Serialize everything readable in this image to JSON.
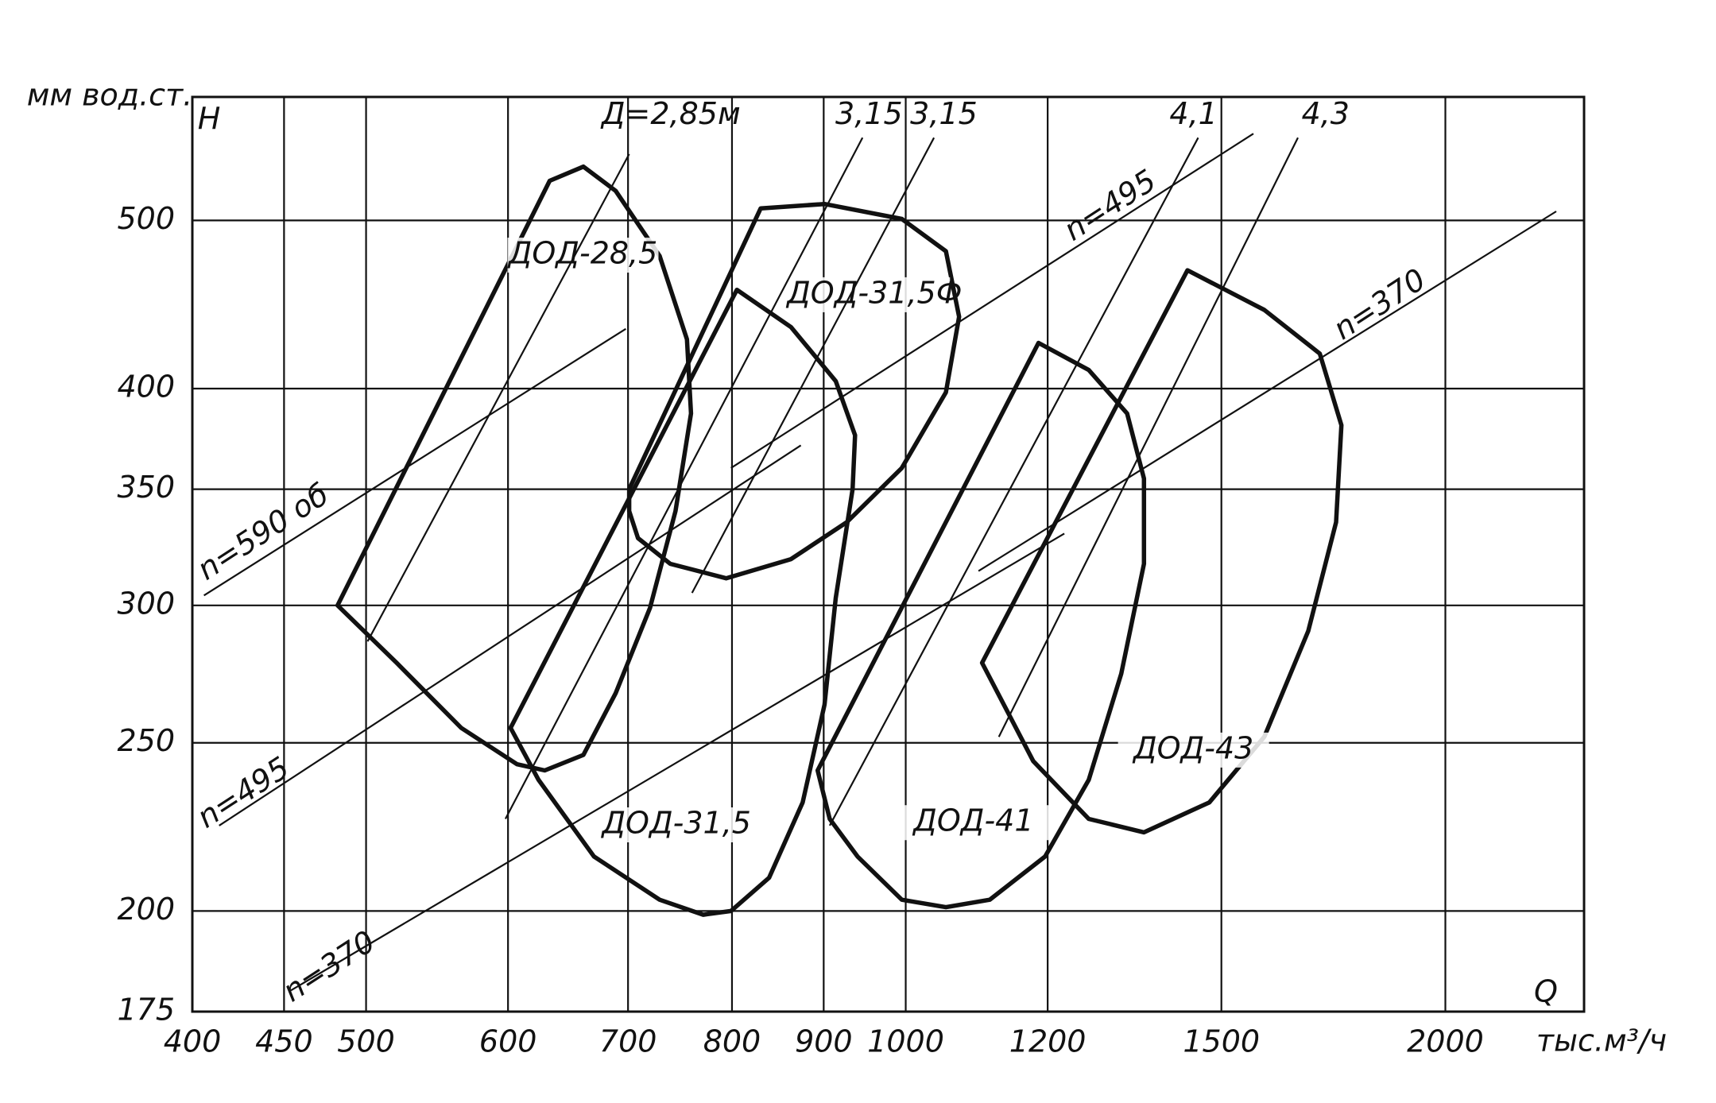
{
  "chart_data": {
    "type": "line",
    "xlog": true,
    "ylog": true,
    "grid": true,
    "color": "#111111",
    "ylabel": "мм вод.ст.",
    "ysymbol": "H",
    "xsymbol": "Q",
    "xlabel": "тыс.м³/ч",
    "xlim": [
      400,
      2390
    ],
    "ylim": [
      175,
      589
    ],
    "xticks": [
      400,
      450,
      500,
      600,
      700,
      800,
      900,
      1000,
      1200,
      1500,
      2000
    ],
    "yticks": [
      175,
      200,
      250,
      300,
      350,
      400,
      500
    ],
    "series": [
      {
        "name": "ДОД-28,5",
        "closed": true,
        "x": [
          482,
          633,
          661,
          689,
          729,
          755,
          759,
          744,
          720,
          689,
          661,
          629,
          607,
          565,
          520
        ],
        "y": [
          300,
          527,
          537,
          520,
          477,
          427,
          387,
          340,
          299,
          267,
          246,
          241,
          243,
          255,
          278
        ]
      },
      {
        "name": "ДОД-31,5Ф",
        "closed": true,
        "x": [
          701,
          830,
          901,
          995,
          1053,
          1071,
          1053,
          995,
          927,
          863,
          794,
          739,
          709,
          701
        ],
        "y": [
          350,
          508,
          511,
          501,
          480,
          440,
          398,
          360,
          335,
          319,
          311,
          317,
          328,
          340
        ]
      },
      {
        "name": "ДОД-31,5",
        "closed": true,
        "x": [
          602,
          805,
          863,
          914,
          937,
          934,
          914,
          901,
          876,
          839,
          799,
          771,
          729,
          670,
          624
        ],
        "y": [
          255,
          456,
          434,
          404,
          376,
          350,
          303,
          263,
          231,
          209,
          200,
          199,
          203,
          215,
          238
        ]
      },
      {
        "name": "ДОД-41",
        "closed": true,
        "x": [
          893,
          1186,
          1265,
          1329,
          1358,
          1358,
          1319,
          1265,
          1196,
          1114,
          1053,
          995,
          940,
          907
        ],
        "y": [
          241,
          425,
          410,
          387,
          355,
          317,
          274,
          238,
          215,
          203,
          201,
          203,
          215,
          226
        ]
      },
      {
        "name": "ДОД-43",
        "closed": true,
        "x": [
          1103,
          1436,
          1585,
          1702,
          1750,
          1738,
          1677,
          1585,
          1477,
          1358,
          1265,
          1178
        ],
        "y": [
          278,
          468,
          444,
          419,
          381,
          335,
          290,
          252,
          231,
          222,
          226,
          244
        ]
      },
      {
        "name": "n=590 об",
        "closed": false,
        "x": [
          406,
          698
        ],
        "y": [
          304,
          433
        ]
      },
      {
        "name": "n=495",
        "closed": false,
        "x": [
          414,
          874
        ],
        "y": [
          224,
          371
        ]
      },
      {
        "name": "n=495",
        "closed": false,
        "x": [
          799,
          1563
        ],
        "y": [
          360,
          561
        ]
      },
      {
        "name": "n=370",
        "closed": false,
        "x": [
          454,
          1226
        ],
        "y": [
          180,
          330
        ]
      },
      {
        "name": "n=370",
        "closed": false,
        "x": [
          1098,
          2306
        ],
        "y": [
          314,
          506
        ]
      },
      {
        "name": "Д=2,85м",
        "closed": false,
        "x": [
          701,
          501
        ],
        "y": [
          546,
          286
        ]
      },
      {
        "name": "3,15",
        "closed": false,
        "x": [
          946,
          598
        ],
        "y": [
          558,
          226
        ]
      },
      {
        "name": "3,15",
        "closed": false,
        "x": [
          1037,
          760
        ],
        "y": [
          558,
          305
        ]
      },
      {
        "name": "4,1",
        "closed": false,
        "x": [
          1456,
          907
        ],
        "y": [
          558,
          224
        ]
      },
      {
        "name": "4,3",
        "closed": false,
        "x": [
          1655,
          1127
        ],
        "y": [
          558,
          252
        ]
      }
    ]
  }
}
